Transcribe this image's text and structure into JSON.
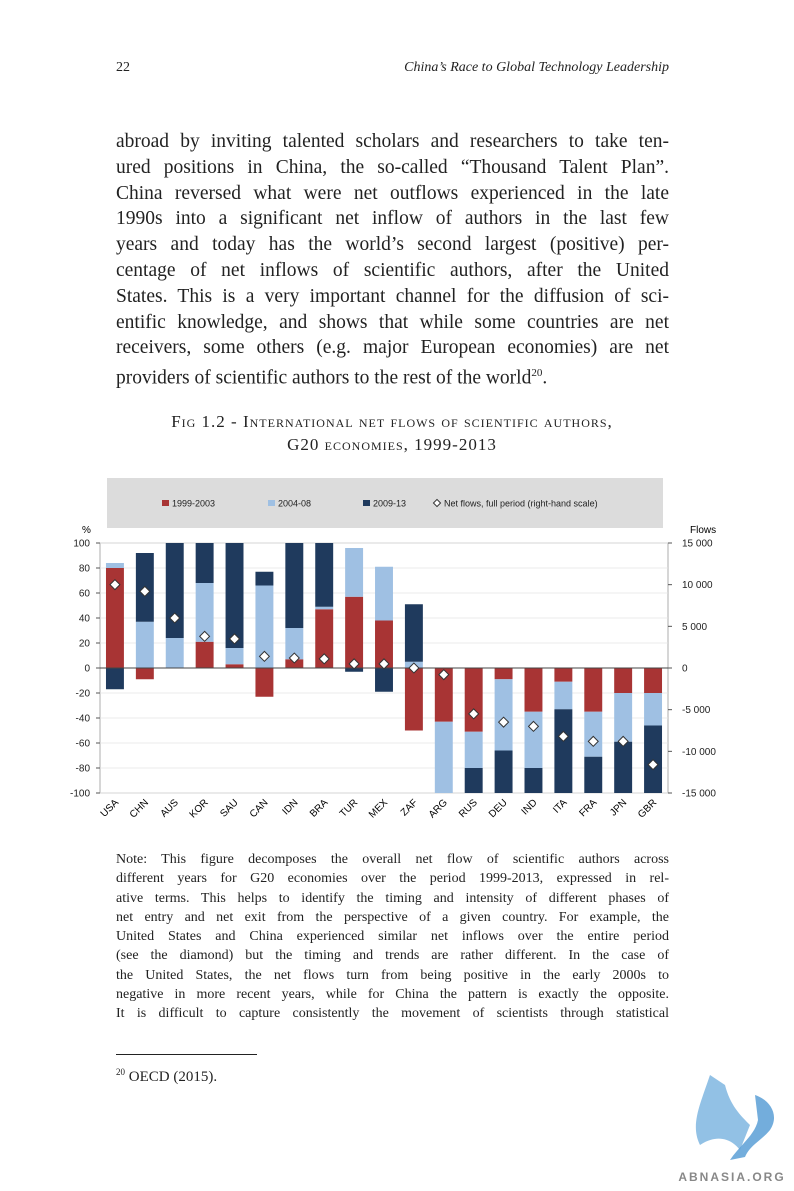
{
  "header": {
    "page_number": "22",
    "running_title": "China’s Race to Global Technology Leadership"
  },
  "paragraph": {
    "lines": [
      "abroad by inviting talented scholars and researchers to take ten-",
      "ured positions in China, the so-called “Thousand Talent Plan”.",
      "China reversed what were net outflows experienced in the late",
      "1990s into a significant net inflow of authors in the last few",
      "years and today has the world’s second largest (positive) per-",
      "centage of net inflows of scientific authors, after the United",
      "States. This is a very important channel for the diffusion of sci-",
      "entific knowledge, and shows that while some countries are net",
      "receivers, some others (e.g. major European economies) are net"
    ],
    "last_line": {
      "text": "providers of scientific authors to the rest of the world",
      "footnote_ref": "20",
      "tail": "."
    }
  },
  "caption": {
    "lines": [
      "Fig 1.2 - International net flows of scientific authors,",
      "G20 economies, 1999-2013"
    ]
  },
  "chart_data": {
    "type": "bar",
    "stacked": true,
    "y_label": "%",
    "y2_label": "Flows",
    "categories": [
      "USA",
      "CHN",
      "AUS",
      "KOR",
      "SAU",
      "CAN",
      "IDN",
      "BRA",
      "TUR",
      "MEX",
      "ZAF",
      "ARG",
      "RUS",
      "DEU",
      "IND",
      "ITA",
      "FRA",
      "JPN",
      "GBR"
    ],
    "series": [
      {
        "name": "1999-2003",
        "color": "#a83434",
        "values": [
          80,
          -9,
          0,
          21,
          3,
          -23,
          7,
          47,
          57,
          38,
          -50,
          -43,
          -51,
          -9,
          -35,
          -11,
          -35,
          -20,
          -20
        ]
      },
      {
        "name": "2004-08",
        "color": "#9fc0e3",
        "values": [
          4,
          37,
          24,
          47,
          13,
          66,
          25,
          2,
          39,
          43,
          5,
          -57,
          -29,
          -57,
          -45,
          -22,
          -36,
          -39,
          -26
        ]
      },
      {
        "name": "2009-13",
        "color": "#1f3a5d",
        "values": [
          -17,
          55,
          76,
          32,
          84,
          11,
          68,
          51,
          -3,
          -19,
          46,
          0,
          -20,
          -34,
          -20,
          -67,
          -29,
          -41,
          -54
        ]
      },
      {
        "name": "Net flows, full period (right-hand scale)",
        "type": "scatter",
        "marker": "diamond",
        "axis": "y2",
        "color": "#ffffff",
        "values": [
          10000,
          9200,
          6000,
          3800,
          3500,
          1400,
          1200,
          1100,
          500,
          500,
          0,
          -800,
          -5500,
          -6500,
          -7000,
          -8200,
          -8800,
          -8800,
          -11600
        ]
      }
    ],
    "ylim": [
      -100,
      100
    ],
    "yticks": [
      100,
      80,
      60,
      40,
      20,
      0,
      -20,
      -40,
      -60,
      -80,
      -100
    ],
    "y2lim": [
      -15000,
      15000
    ],
    "y2ticks": [
      {
        "value": 15000,
        "label": "15 000"
      },
      {
        "value": 10000,
        "label": "10 000"
      },
      {
        "value": 5000,
        "label": "5 000"
      },
      0,
      {
        "value": -5000,
        "label": "-5 000"
      },
      {
        "value": -10000,
        "label": "-10 000"
      },
      {
        "value": -15000,
        "label": "-15 000"
      }
    ],
    "grid": true,
    "legend": "top"
  },
  "note": {
    "lines": [
      "Note: This figure decomposes the overall net flow of scientific authors across",
      "different years for G20 economies over the period 1999-2013, expressed in rel-",
      "ative terms. This helps to identify the timing and intensity of different phases of",
      "net entry and net exit from the perspective of a given country. For example, the",
      "United States and China experienced similar net inflows over the entire period",
      "(see the diamond) but the timing and trends are rather different. In the case of",
      "the United States, the net flows turn from being positive in the early 2000s to",
      "negative in more recent years, while for China the pattern is exactly the opposite.",
      "It is difficult to capture consistently the movement of scientists through statistical"
    ]
  },
  "footnote": {
    "number": "20",
    "text": "OECD (2015)."
  },
  "watermark": "ABNASIA.ORG"
}
